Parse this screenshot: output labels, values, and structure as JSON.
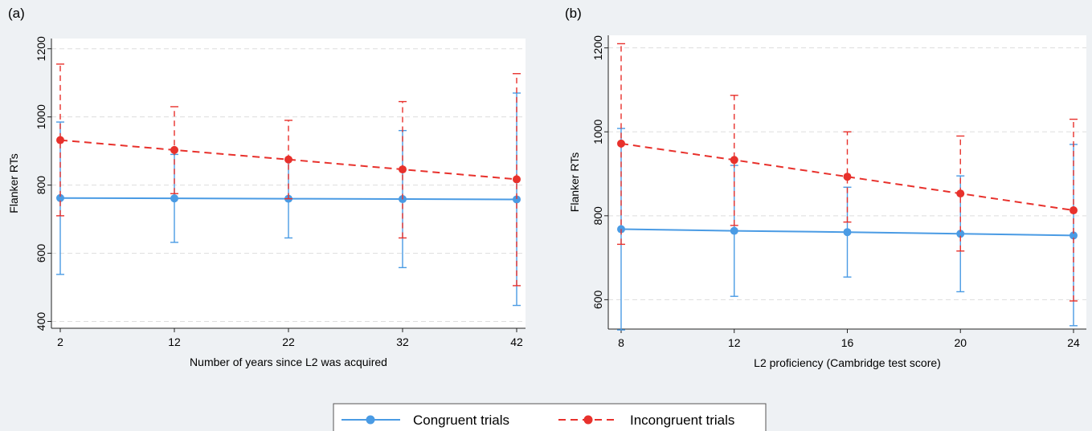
{
  "colors": {
    "congruent": "#4a9be4",
    "incongruent": "#e8312c",
    "plot_bg": "#ffffff",
    "outer_bg": "#eef1f4",
    "grid": "#dddddd"
  },
  "legend": {
    "entries": [
      "Congruent trials",
      "Incongruent trials"
    ],
    "placement": "bottom"
  },
  "chart_data": [
    {
      "type": "line",
      "panel": "(a)",
      "xlabel": "Number of years since L2 was acquired",
      "ylabel": "Flanker RTs",
      "xlim": [
        2,
        42
      ],
      "ylim": [
        380,
        1230
      ],
      "xticks": [
        2,
        12,
        22,
        32,
        42
      ],
      "yticks": [
        400,
        600,
        800,
        1000,
        1200
      ],
      "grid": true,
      "x": [
        2,
        12,
        22,
        32,
        42
      ],
      "series": [
        {
          "name": "Congruent trials",
          "style": "solid",
          "values": [
            762,
            761,
            760,
            759,
            758
          ],
          "lower": [
            538,
            632,
            645,
            558,
            447
          ],
          "upper": [
            985,
            890,
            875,
            960,
            1070
          ]
        },
        {
          "name": "Incongruent trials",
          "style": "dashed",
          "values": [
            932,
            903,
            875,
            846,
            817
          ],
          "lower": [
            710,
            775,
            760,
            645,
            505
          ],
          "upper": [
            1155,
            1030,
            990,
            1045,
            1127
          ]
        }
      ]
    },
    {
      "type": "line",
      "panel": "(b)",
      "xlabel": "L2 proficiency (Cambridge test score)",
      "ylabel": "Flanker RTs",
      "xlim": [
        8,
        24
      ],
      "ylim": [
        530,
        1230
      ],
      "xticks": [
        8,
        12,
        16,
        20,
        24
      ],
      "yticks": [
        600,
        800,
        1000,
        1200
      ],
      "grid": true,
      "x": [
        8,
        12,
        16,
        20,
        24
      ],
      "series": [
        {
          "name": "Congruent trials",
          "style": "solid",
          "values": [
            768,
            764,
            761,
            757,
            753
          ],
          "lower": [
            528,
            608,
            654,
            619,
            538
          ],
          "upper": [
            1008,
            920,
            868,
            895,
            970
          ]
        },
        {
          "name": "Incongruent trials",
          "style": "dashed",
          "values": [
            972,
            933,
            893,
            853,
            813
          ],
          "lower": [
            732,
            777,
            785,
            716,
            597
          ],
          "upper": [
            1210,
            1087,
            1000,
            990,
            1030
          ]
        }
      ]
    }
  ]
}
